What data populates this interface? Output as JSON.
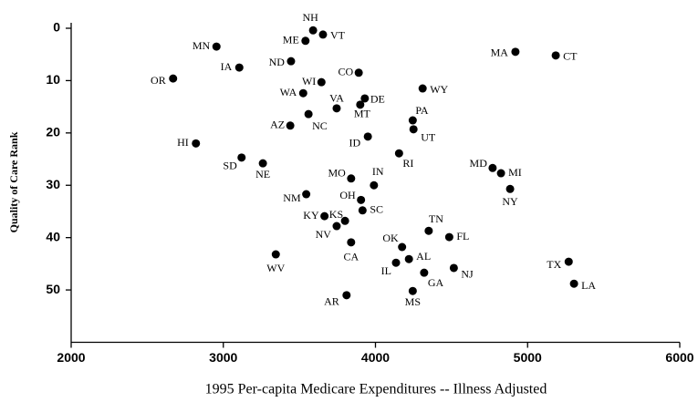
{
  "chart_data": {
    "type": "scatter",
    "xlabel": "1995 Per-capita Medicare Expenditures -- Illness Adjusted",
    "ylabel": "Quality of Care Rank",
    "xlim": [
      2000,
      6000
    ],
    "xticks": [
      2000,
      3000,
      4000,
      5000,
      6000
    ],
    "ylim": [
      0,
      60
    ],
    "yticks": [
      0,
      10,
      20,
      30,
      40,
      50
    ],
    "y_inverted": true,
    "color": "#000000",
    "labels": [
      "NH",
      "VT",
      "ME",
      "MN",
      "IA",
      "ND",
      "OR",
      "CO",
      "WI",
      "WY",
      "WA",
      "VA",
      "DE",
      "MT",
      "NC",
      "PA",
      "AZ",
      "UT",
      "ID",
      "HI",
      "RI",
      "SD",
      "NE",
      "MD",
      "MI",
      "NY",
      "MA",
      "CT",
      "MO",
      "IN",
      "NM",
      "OH",
      "SC",
      "KY",
      "KS",
      "NV",
      "TN",
      "FL",
      "CA",
      "OK",
      "AL",
      "IL",
      "TX",
      "LA",
      "GA",
      "NJ",
      "WV",
      "AR",
      "MS"
    ],
    "x": [
      3590,
      3655,
      3540,
      2955,
      3105,
      3445,
      2670,
      3890,
      3645,
      4310,
      3525,
      3745,
      3930,
      3900,
      3560,
      4245,
      3440,
      4250,
      3950,
      2820,
      4155,
      3120,
      3260,
      4770,
      4825,
      4885,
      4920,
      5185,
      3840,
      3990,
      3545,
      3905,
      3915,
      3665,
      3800,
      3745,
      4350,
      4485,
      3840,
      4175,
      4220,
      4135,
      5270,
      5305,
      4320,
      4515,
      3345,
      3810,
      4245
    ],
    "y": [
      0.4,
      1.2,
      2.4,
      3.5,
      7.5,
      6.3,
      9.6,
      8.5,
      10.3,
      11.5,
      12.4,
      15.3,
      13.4,
      14.6,
      16.4,
      17.6,
      18.6,
      19.3,
      20.7,
      22,
      23.9,
      24.7,
      25.8,
      26.7,
      27.7,
      30.7,
      4.5,
      5.2,
      28.7,
      30,
      31.7,
      32.8,
      34.8,
      35.9,
      36.8,
      37.8,
      38.7,
      39.9,
      40.9,
      41.8,
      44.1,
      44.8,
      44.6,
      48.8,
      46.7,
      45.8,
      43.2,
      51,
      50.2
    ]
  }
}
